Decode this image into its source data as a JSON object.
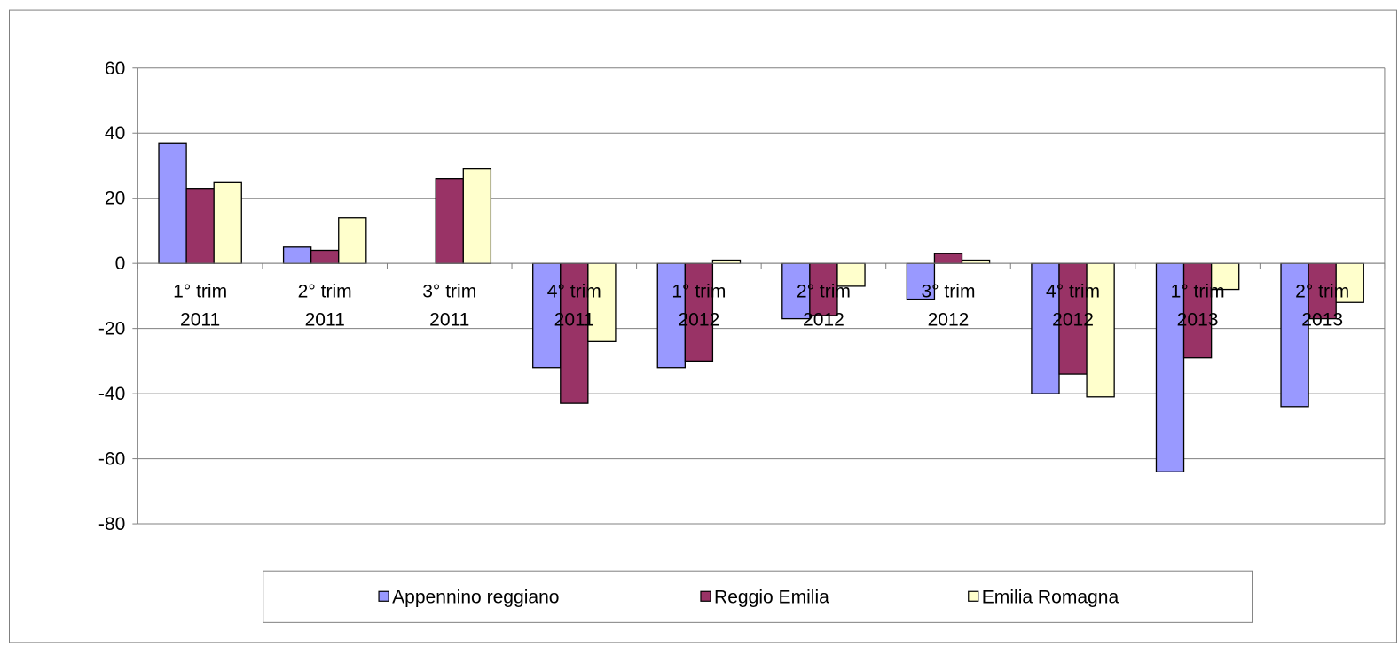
{
  "chart_data": {
    "type": "bar",
    "title": "",
    "xlabel": "",
    "ylabel": "",
    "ylim": [
      -80,
      60
    ],
    "yticks": [
      60,
      40,
      20,
      0,
      -20,
      -40,
      -60,
      -80
    ],
    "grid": true,
    "legend_position": "bottom",
    "categories": [
      [
        "1° trim",
        "2011"
      ],
      [
        "2° trim",
        "2011"
      ],
      [
        "3° trim",
        "2011"
      ],
      [
        "4° trim",
        "2011"
      ],
      [
        "1° trim",
        "2012"
      ],
      [
        "2° trim",
        "2012"
      ],
      [
        "3° trim",
        "2012"
      ],
      [
        "4° trim",
        "2012"
      ],
      [
        "1° trim",
        "2013"
      ],
      [
        "2° trim",
        "2013"
      ]
    ],
    "series": [
      {
        "name": "Appennino reggiano",
        "color": "#9999ff",
        "values": [
          37,
          5,
          null,
          -32,
          -32,
          -17,
          -11,
          -40,
          -64,
          -44
        ]
      },
      {
        "name": "Reggio Emilia",
        "color": "#993366",
        "values": [
          23,
          4,
          26,
          -43,
          -30,
          -16,
          3,
          -34,
          -29,
          -17
        ]
      },
      {
        "name": "Emilia Romagna",
        "color": "#ffffcc",
        "values": [
          25,
          14,
          29,
          -24,
          1,
          -7,
          1,
          -41,
          -8,
          -12
        ]
      }
    ]
  }
}
